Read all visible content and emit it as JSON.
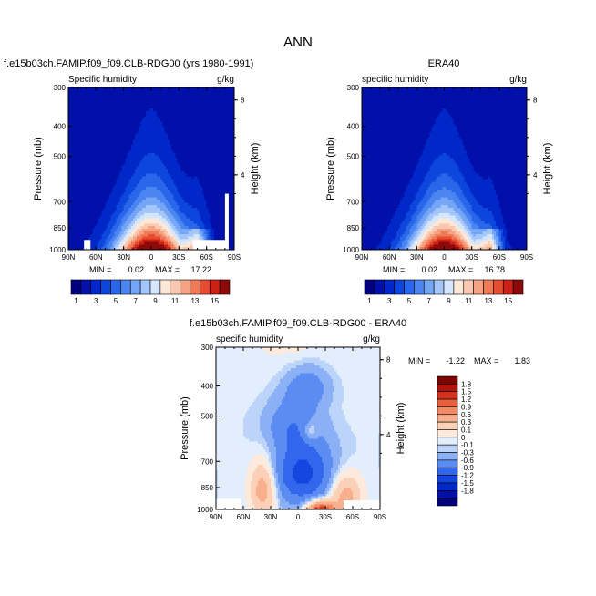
{
  "page": {
    "title": "ANN"
  },
  "colors": {
    "seq": [
      "#00007f",
      "#0010a8",
      "#0028c8",
      "#0c46dc",
      "#2a66ea",
      "#4b85f2",
      "#75a6f6",
      "#a5c6fa",
      "#d5e6fc",
      "#fde8d8",
      "#fac8b0",
      "#f6a383",
      "#f07a57",
      "#e64d30",
      "#cc2216",
      "#8c0a0a"
    ],
    "div": [
      "#00007f",
      "#0010a8",
      "#0028c8",
      "#1246de",
      "#3266ec",
      "#5b8cf2",
      "#8cb0f6",
      "#bdd4fa",
      "#e2eefc",
      "#fdeadc",
      "#fcd0b6",
      "#f8af8e",
      "#f28a66",
      "#e8603e",
      "#d2321e",
      "#b0140e",
      "#7e0404"
    ]
  },
  "chart_data": [
    {
      "type": "heatmap",
      "name": "model",
      "title": "f.e15b03ch.FAMIP.f09_f09.CLB-RDG00 (yrs 1980-1991)",
      "left_label": "Specific humidity",
      "units": "g/kg",
      "ylabel": "Pressure (mb)",
      "y2label": "Height (km)",
      "x_ticks": [
        "90N",
        "60N",
        "30N",
        "0",
        "30S",
        "60S",
        "90S"
      ],
      "p_ticks": [
        "300",
        "400",
        "500",
        "700",
        "850",
        "1000"
      ],
      "h_ticks": [
        "8",
        "4"
      ],
      "min_label": "MIN =",
      "min_value": "0.02",
      "max_label": "MAX =",
      "max_value": "17.22",
      "peak": 17.2,
      "colorbar_labels": [
        "1",
        "3",
        "5",
        "7",
        "9",
        "11",
        "13",
        "15"
      ]
    },
    {
      "type": "heatmap",
      "name": "era40",
      "title": "ERA40",
      "left_label": "specific humidity",
      "units": "g/kg",
      "ylabel": "Pressure (mb)",
      "y2label": "Height (km)",
      "x_ticks": [
        "90N",
        "60N",
        "30N",
        "0",
        "30S",
        "60S",
        "90S"
      ],
      "p_ticks": [
        "300",
        "400",
        "500",
        "700",
        "850",
        "1000"
      ],
      "h_ticks": [
        "8",
        "4"
      ],
      "min_label": "MIN =",
      "min_value": "0.02",
      "max_label": "MAX =",
      "max_value": "16.78",
      "peak": 16.8,
      "colorbar_labels": [
        "1",
        "3",
        "5",
        "7",
        "9",
        "11",
        "13",
        "15"
      ]
    },
    {
      "type": "heatmap",
      "name": "difference",
      "title": "f.e15b03ch.FAMIP.f09_f09.CLB-RDG00 - ERA40",
      "left_label": "specific humidity",
      "units": "g/kg",
      "ylabel": "Pressure (mb)",
      "y2label": "Height (km)",
      "x_ticks": [
        "90N",
        "60N",
        "30N",
        "0",
        "30S",
        "60S",
        "90S"
      ],
      "p_ticks": [
        "300",
        "400",
        "500",
        "700",
        "850",
        "1000"
      ],
      "h_ticks": [
        "8",
        "4"
      ],
      "min_label": "MIN =",
      "min_value": "-1.22",
      "max_label": "MAX =",
      "max_value": "1.83",
      "colorbar_labels": [
        "1.8",
        "1.5",
        "1.2",
        "0.9",
        "0.6",
        "0.3",
        "0.1",
        "0",
        "-0.1",
        "-0.3",
        "-0.6",
        "-0.9",
        "-1.2",
        "-1.5",
        "-1.8"
      ]
    }
  ]
}
